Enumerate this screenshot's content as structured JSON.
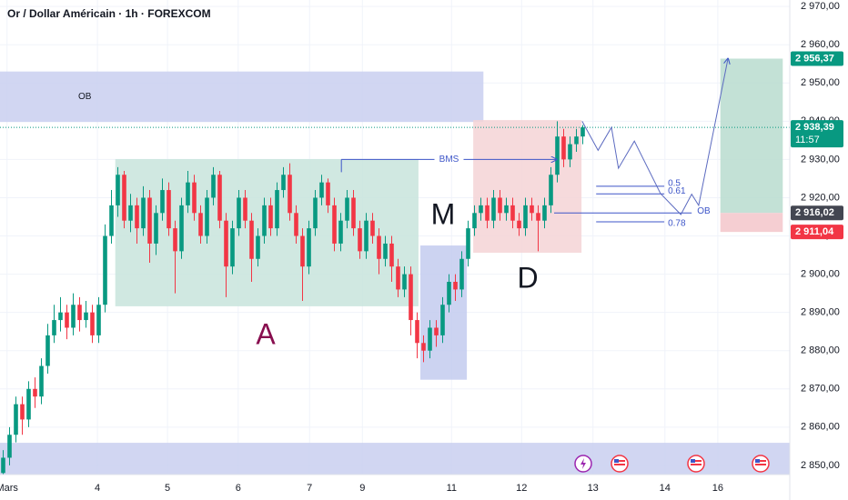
{
  "chart_data": {
    "type": "candlestick",
    "title": "Or / Dollar Américain · 1h · FOREXCOM",
    "up_color": "#089981",
    "down_color": "#f23645",
    "xlim": [
      0,
      124
    ],
    "ylim": [
      2847.6,
      2971.7
    ],
    "xticks": [
      {
        "value": 1.1,
        "label": "Mars"
      },
      {
        "value": 15.3,
        "label": "4"
      },
      {
        "value": 26.3,
        "label": "5"
      },
      {
        "value": 37.4,
        "label": "6"
      },
      {
        "value": 48.6,
        "label": "7"
      },
      {
        "value": 56.9,
        "label": "9"
      },
      {
        "value": 70.9,
        "label": "11"
      },
      {
        "value": 81.9,
        "label": "12"
      },
      {
        "value": 93.1,
        "label": "13"
      },
      {
        "value": 104.4,
        "label": "14"
      },
      {
        "value": 112.7,
        "label": "16"
      }
    ],
    "yticks": [
      {
        "value": 2850,
        "label": "2 850,00"
      },
      {
        "value": 2860,
        "label": "2 860,00"
      },
      {
        "value": 2870,
        "label": "2 870,00"
      },
      {
        "value": 2880,
        "label": "2 880,00"
      },
      {
        "value": 2890,
        "label": "2 890,00"
      },
      {
        "value": 2900,
        "label": "2 900,00"
      },
      {
        "value": 2910,
        "label": "2 910,00"
      },
      {
        "value": 2920,
        "label": "2 920,00"
      },
      {
        "value": 2930,
        "label": "2 930,00"
      },
      {
        "value": 2940,
        "label": "2 940,00"
      },
      {
        "value": 2950,
        "label": "2 950,00"
      },
      {
        "value": 2960,
        "label": "2 960,00"
      },
      {
        "value": 2970,
        "label": "2 970,00"
      }
    ],
    "grid": true,
    "ohlc": [
      [
        2848,
        2854,
        2845,
        2852
      ],
      [
        2852,
        2860,
        2850,
        2858
      ],
      [
        2858,
        2868,
        2856,
        2866
      ],
      [
        2866,
        2868,
        2858,
        2862
      ],
      [
        2862,
        2872,
        2860,
        2870
      ],
      [
        2870,
        2873,
        2865,
        2868
      ],
      [
        2868,
        2878,
        2866,
        2876
      ],
      [
        2876,
        2887,
        2874,
        2884
      ],
      [
        2884,
        2892,
        2882,
        2888
      ],
      [
        2888,
        2894,
        2885,
        2890
      ],
      [
        2890,
        2892,
        2883,
        2886
      ],
      [
        2886,
        2895,
        2884,
        2892
      ],
      [
        2892,
        2894,
        2885,
        2888
      ],
      [
        2888,
        2893,
        2886,
        2890
      ],
      [
        2890,
        2892,
        2882,
        2884
      ],
      [
        2884,
        2894,
        2882,
        2892
      ],
      [
        2892,
        2913,
        2890,
        2910
      ],
      [
        2910,
        2922,
        2908,
        2918
      ],
      [
        2918,
        2928,
        2915,
        2926
      ],
      [
        2926,
        2927,
        2912,
        2914
      ],
      [
        2914,
        2921,
        2911,
        2918
      ],
      [
        2918,
        2920,
        2908,
        2912
      ],
      [
        2912,
        2923,
        2910,
        2920
      ],
      [
        2920,
        2922,
        2903,
        2908
      ],
      [
        2908,
        2918,
        2905,
        2916
      ],
      [
        2916,
        2925,
        2914,
        2922
      ],
      [
        2922,
        2924,
        2910,
        2912
      ],
      [
        2912,
        2914,
        2895,
        2906
      ],
      [
        2906,
        2920,
        2904,
        2918
      ],
      [
        2918,
        2927,
        2916,
        2924
      ],
      [
        2924,
        2926,
        2914,
        2916
      ],
      [
        2916,
        2918,
        2908,
        2910
      ],
      [
        2910,
        2922,
        2908,
        2920
      ],
      [
        2920,
        2928,
        2918,
        2926
      ],
      [
        2926,
        2927,
        2912,
        2914
      ],
      [
        2914,
        2916,
        2894,
        2902
      ],
      [
        2902,
        2914,
        2900,
        2912
      ],
      [
        2912,
        2922,
        2910,
        2920
      ],
      [
        2920,
        2922,
        2912,
        2914
      ],
      [
        2914,
        2916,
        2898,
        2904
      ],
      [
        2904,
        2912,
        2902,
        2910
      ],
      [
        2910,
        2920,
        2908,
        2918
      ],
      [
        2918,
        2920,
        2910,
        2912
      ],
      [
        2912,
        2924,
        2910,
        2922
      ],
      [
        2922,
        2928,
        2920,
        2926
      ],
      [
        2926,
        2929,
        2914,
        2916
      ],
      [
        2916,
        2918,
        2908,
        2910
      ],
      [
        2910,
        2912,
        2893,
        2902
      ],
      [
        2902,
        2914,
        2900,
        2912
      ],
      [
        2912,
        2922,
        2910,
        2920
      ],
      [
        2920,
        2926,
        2918,
        2924
      ],
      [
        2924,
        2925,
        2916,
        2918
      ],
      [
        2918,
        2920,
        2906,
        2908
      ],
      [
        2908,
        2916,
        2906,
        2914
      ],
      [
        2914,
        2922,
        2912,
        2920
      ],
      [
        2920,
        2922,
        2910,
        2912
      ],
      [
        2912,
        2914,
        2904,
        2906
      ],
      [
        2906,
        2916,
        2904,
        2914
      ],
      [
        2914,
        2916,
        2908,
        2910
      ],
      [
        2910,
        2912,
        2900,
        2904
      ],
      [
        2904,
        2910,
        2902,
        2908
      ],
      [
        2908,
        2910,
        2898,
        2902
      ],
      [
        2902,
        2904,
        2894,
        2896
      ],
      [
        2896,
        2902,
        2894,
        2900
      ],
      [
        2900,
        2902,
        2884,
        2888
      ],
      [
        2888,
        2890,
        2878,
        2882
      ],
      [
        2882,
        2884,
        2877,
        2880
      ],
      [
        2880,
        2888,
        2878,
        2886
      ],
      [
        2886,
        2888,
        2881,
        2884
      ],
      [
        2884,
        2894,
        2882,
        2892
      ],
      [
        2892,
        2900,
        2890,
        2898
      ],
      [
        2898,
        2900,
        2893,
        2896
      ],
      [
        2896,
        2906,
        2894,
        2904
      ],
      [
        2904,
        2914,
        2902,
        2912
      ],
      [
        2912,
        2918,
        2910,
        2916
      ],
      [
        2916,
        2920,
        2914,
        2918
      ],
      [
        2918,
        2920,
        2912,
        2914
      ],
      [
        2914,
        2922,
        2912,
        2920
      ],
      [
        2920,
        2922,
        2914,
        2916
      ],
      [
        2916,
        2920,
        2914,
        2918
      ],
      [
        2918,
        2920,
        2912,
        2914
      ],
      [
        2914,
        2916,
        2910,
        2912
      ],
      [
        2912,
        2920,
        2910,
        2918
      ],
      [
        2918,
        2920,
        2914,
        2916
      ],
      [
        2916,
        2918,
        2906,
        2914
      ],
      [
        2914,
        2920,
        2912,
        2918
      ],
      [
        2918,
        2928,
        2916,
        2926
      ],
      [
        2926,
        2940,
        2924,
        2936
      ],
      [
        2936,
        2938,
        2928,
        2930
      ],
      [
        2930,
        2936,
        2928,
        2934
      ],
      [
        2934,
        2938,
        2932,
        2936
      ],
      [
        2936,
        2939,
        2934,
        2938.39
      ]
    ],
    "zones": [
      {
        "x": [
          0,
          75.9
        ],
        "y": [
          2939.8,
          2953
        ],
        "color": "#c9cff0",
        "label": "OB"
      },
      {
        "x": [
          18.1,
          65.7
        ],
        "y": [
          2891.6,
          2930.1
        ],
        "color": "#c8e4dc"
      },
      {
        "x": [
          66,
          73.3
        ],
        "y": [
          2872.4,
          2907.5
        ],
        "color": "#c3cbef"
      },
      {
        "x": [
          74.3,
          91.3
        ],
        "y": [
          2905.6,
          2940.3
        ],
        "color": "#f5d3d6"
      },
      {
        "x": [
          0,
          124
        ],
        "y": [
          2847.6,
          2855.9
        ],
        "color": "#c9cff0"
      },
      {
        "x": [
          113.1,
          122.9
        ],
        "y": [
          2916.02,
          2956.37
        ],
        "color": "#b9dccf"
      },
      {
        "x": [
          113.1,
          122.9
        ],
        "y": [
          2911.04,
          2916.02
        ],
        "color": "#f3c5ca"
      }
    ],
    "bms": {
      "label": "BMS",
      "price": 2930,
      "x": [
        53.6,
        87.4
      ]
    },
    "ob_line": {
      "label": "OB",
      "price": 2916.02,
      "x": [
        87,
        108.6
      ]
    },
    "fib": {
      "x": [
        93.6,
        104.3
      ],
      "levels": [
        {
          "label": "0.5",
          "price": 2923
        },
        {
          "label": "0.61",
          "price": 2921
        },
        {
          "label": "0.78",
          "price": 2913.7
        }
      ]
    },
    "projection": {
      "x": [
        91.4,
        93.9,
        96,
        97.1,
        99.6,
        103.7,
        106.9,
        108.6,
        109.7,
        114.3
      ],
      "y": [
        2940,
        2932.4,
        2938.4,
        2927.7,
        2934.8,
        2921.1,
        2915.6,
        2920.9,
        2918,
        2956.4
      ]
    },
    "pattern_labels": [
      "A",
      "M",
      "D"
    ],
    "price_tags": {
      "values": [
        2956.37,
        2938.39,
        2916.02,
        2911.04
      ],
      "value_labels": [
        "2 956,37",
        "2 938,39",
        "2 916,02",
        "2 911,04"
      ],
      "colors": [
        "#089981",
        "#089981",
        "#434651",
        "#f23645"
      ]
    },
    "countdown": "11:57"
  }
}
